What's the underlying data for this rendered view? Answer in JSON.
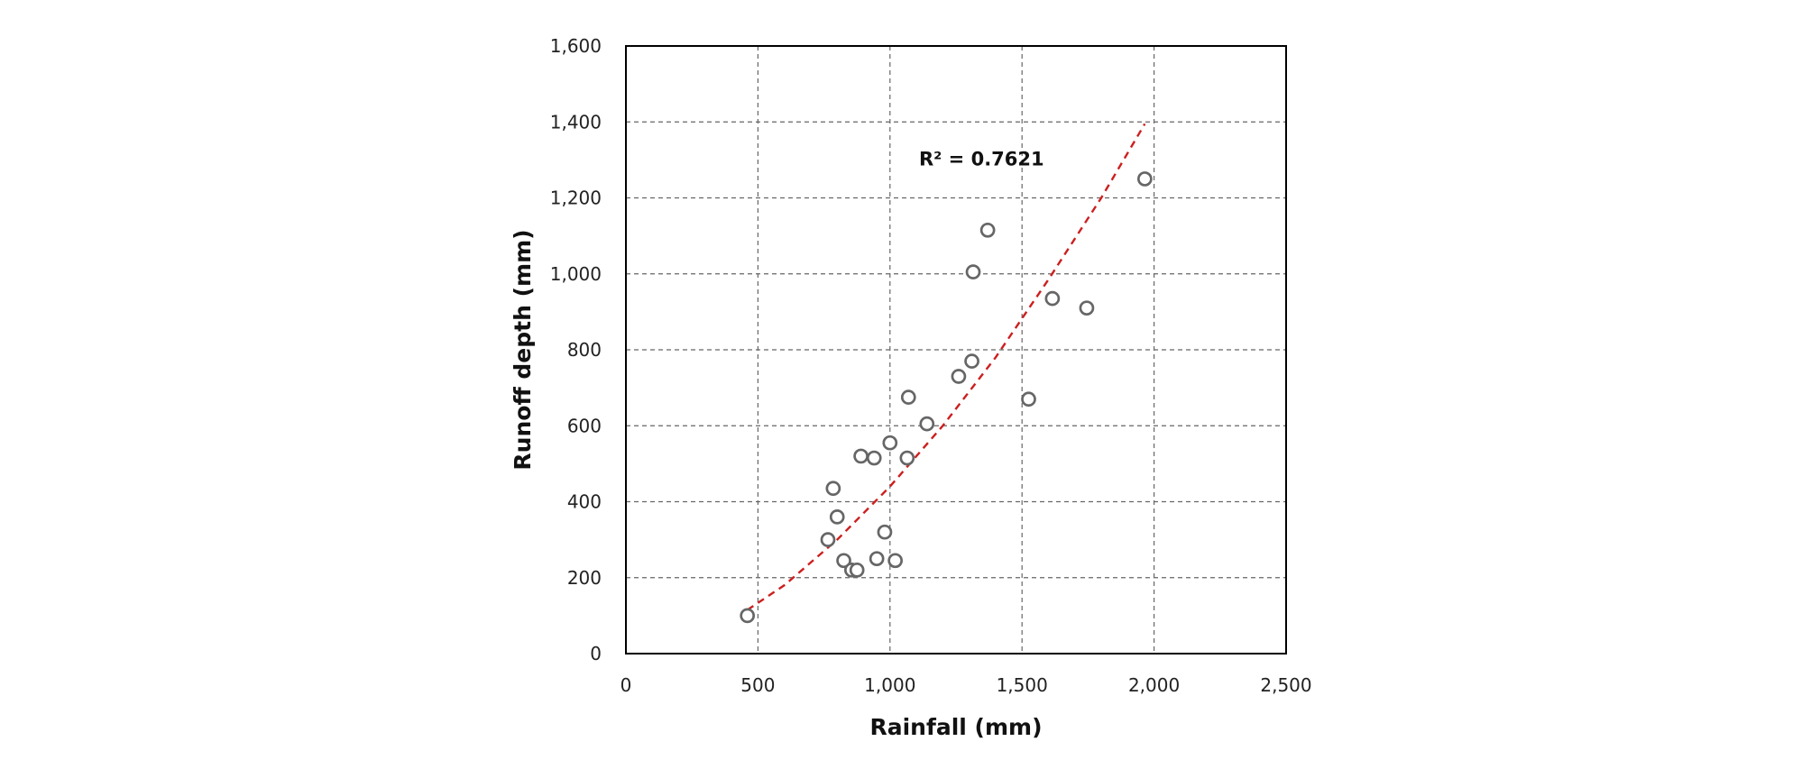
{
  "chart_data": {
    "type": "scatter",
    "title": "",
    "xlabel": "Rainfall (mm)",
    "ylabel": "Runoff depth (mm)",
    "xlim": [
      0,
      2500
    ],
    "ylim": [
      0,
      1600
    ],
    "x_ticks": [
      0,
      500,
      1000,
      1500,
      2000,
      2500
    ],
    "y_ticks": [
      0,
      200,
      400,
      600,
      800,
      1000,
      1200,
      1400,
      1600
    ],
    "x_tick_labels": [
      "0",
      "500",
      "1,000",
      "1,500",
      "2,000",
      "2,500"
    ],
    "y_tick_labels": [
      "0",
      "200",
      "400",
      "600",
      "800",
      "1,000",
      "1,200",
      "1,400",
      "1,600"
    ],
    "grid": true,
    "series": [
      {
        "points": [
          {
            "x": 460,
            "y": 100
          },
          {
            "x": 765,
            "y": 300
          },
          {
            "x": 785,
            "y": 435
          },
          {
            "x": 800,
            "y": 360
          },
          {
            "x": 825,
            "y": 245
          },
          {
            "x": 855,
            "y": 220
          },
          {
            "x": 875,
            "y": 220
          },
          {
            "x": 890,
            "y": 520
          },
          {
            "x": 940,
            "y": 515
          },
          {
            "x": 950,
            "y": 250
          },
          {
            "x": 980,
            "y": 320
          },
          {
            "x": 1000,
            "y": 555
          },
          {
            "x": 1020,
            "y": 245
          },
          {
            "x": 1065,
            "y": 515
          },
          {
            "x": 1070,
            "y": 675
          },
          {
            "x": 1140,
            "y": 605
          },
          {
            "x": 1260,
            "y": 730
          },
          {
            "x": 1310,
            "y": 770
          },
          {
            "x": 1315,
            "y": 1005
          },
          {
            "x": 1370,
            "y": 1115
          },
          {
            "x": 1525,
            "y": 670
          },
          {
            "x": 1615,
            "y": 935
          },
          {
            "x": 1745,
            "y": 910
          },
          {
            "x": 1965,
            "y": 1250
          }
        ]
      }
    ],
    "trendline": {
      "x_start": 460,
      "x_end": 1965,
      "curve": [
        {
          "x": 460,
          "y": 115
        },
        {
          "x": 600,
          "y": 180
        },
        {
          "x": 800,
          "y": 300
        },
        {
          "x": 1000,
          "y": 440
        },
        {
          "x": 1200,
          "y": 600
        },
        {
          "x": 1400,
          "y": 780
        },
        {
          "x": 1600,
          "y": 985
        },
        {
          "x": 1800,
          "y": 1200
        },
        {
          "x": 1965,
          "y": 1395
        }
      ],
      "color": "#cc1f1f"
    },
    "annotation": {
      "text": "R² = 0.7621",
      "x": 1110,
      "y": 1285
    }
  },
  "colors": {
    "background": "#ffffff",
    "frame": "#000000",
    "grid": "#666666",
    "points": "#666666",
    "trendline": "#cc1f1f"
  }
}
